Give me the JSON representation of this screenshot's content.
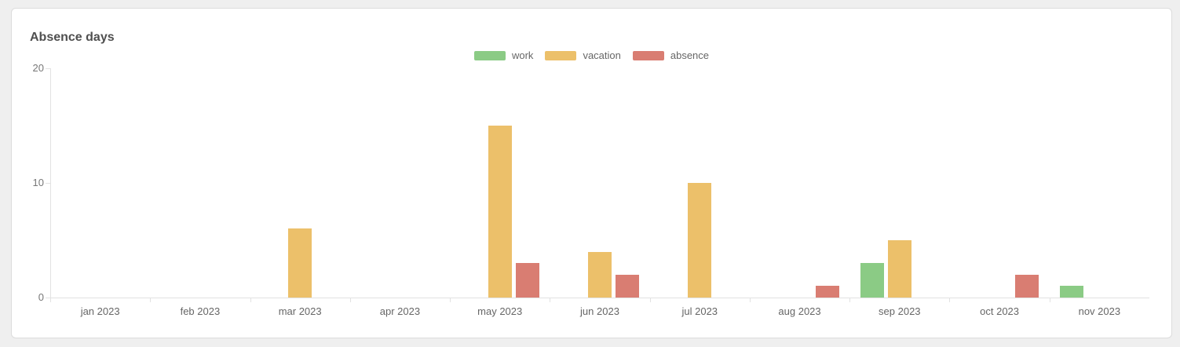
{
  "chart_data": {
    "type": "bar",
    "title": "Absence days",
    "categories": [
      "jan 2023",
      "feb 2023",
      "mar 2023",
      "apr 2023",
      "may 2023",
      "jun 2023",
      "jul 2023",
      "aug 2023",
      "sep 2023",
      "oct 2023",
      "nov 2023"
    ],
    "series": [
      {
        "name": "work",
        "color": "#8bcb85",
        "values": [
          0,
          0,
          0,
          0,
          0,
          0,
          0,
          0,
          3,
          0,
          1
        ]
      },
      {
        "name": "vacation",
        "color": "#ecc06a",
        "values": [
          0,
          0,
          6,
          0,
          15,
          4,
          10,
          0,
          5,
          0,
          0
        ]
      },
      {
        "name": "absence",
        "color": "#d97d72",
        "values": [
          0,
          0,
          0,
          0,
          3,
          2,
          0,
          1,
          0,
          2,
          0
        ]
      }
    ],
    "ylim": [
      0,
      20
    ],
    "yticks": [
      0,
      10,
      20
    ],
    "legend_position": "top-center",
    "grid": false,
    "axis_color": "#e2e2e2",
    "label_color": "#666666"
  }
}
